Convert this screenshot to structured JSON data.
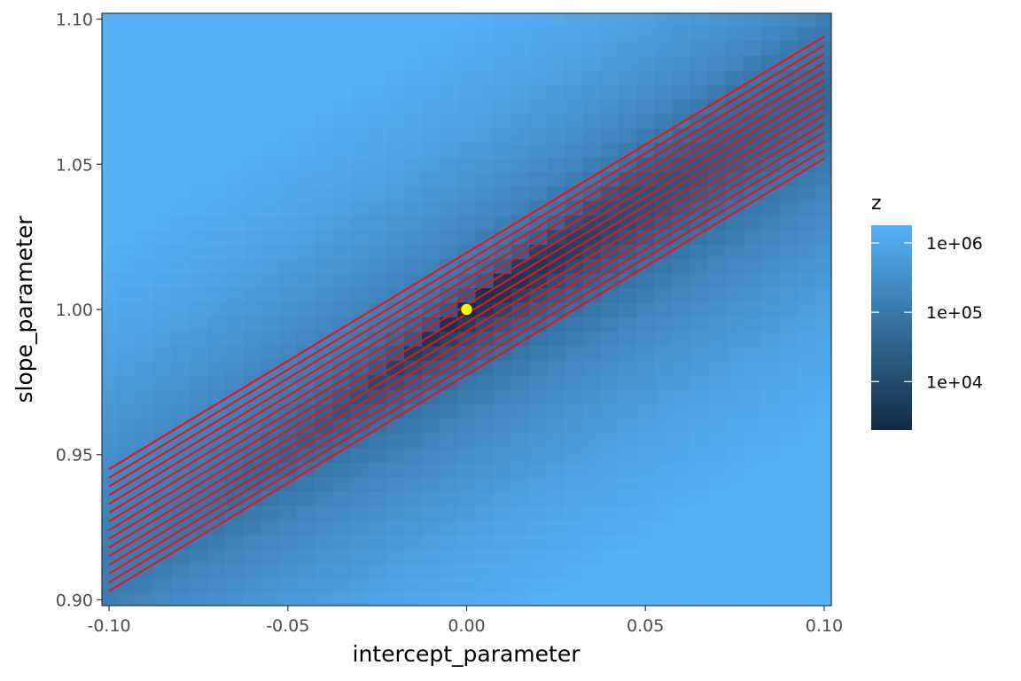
{
  "chart_data": {
    "type": "heatmap",
    "xlabel": "intercept_parameter",
    "ylabel": "slope_parameter",
    "xlim": [
      -0.102,
      0.102
    ],
    "ylim": [
      0.898,
      1.102
    ],
    "x_ticks": [
      -0.1,
      -0.05,
      0.0,
      0.05,
      0.1
    ],
    "x_tick_labels": [
      "-0.10",
      "-0.05",
      "0.00",
      "0.05",
      "0.10"
    ],
    "y_ticks": [
      0.9,
      0.95,
      1.0,
      1.05,
      1.1
    ],
    "y_tick_labels": [
      "0.90",
      "0.95",
      "1.00",
      "1.05",
      "1.10"
    ],
    "heatmap": {
      "x_range": [
        -0.1,
        0.1
      ],
      "y_range": [
        0.9,
        1.1
      ],
      "cells_x": 41,
      "cells_y": 41,
      "minimum_ridge": {
        "slope_at_intercept_0": 1.0,
        "dslope_dintercept": 0.745
      },
      "fill_scale": "log10",
      "color_low": "#132b43",
      "color_high": "#56b1f7"
    },
    "legend": {
      "title": "z",
      "position": "right",
      "breaks": [
        10000,
        100000,
        1000000
      ],
      "labels": [
        "1e+04",
        "1e+05",
        "1e+06"
      ],
      "range": [
        2000,
        1800000
      ]
    },
    "lines": {
      "color": "#e8141b",
      "slope": 0.745,
      "y_at_intercept_0": [
        0.9775,
        0.9805,
        0.9835,
        0.9865,
        0.9895,
        0.9925,
        0.9955,
        0.9985,
        1.0015,
        1.0045,
        1.0075,
        1.0105,
        1.0135,
        1.0165,
        1.0195
      ]
    },
    "points": [
      {
        "x": 0.0,
        "y": 1.0,
        "color": "#ffff00"
      }
    ]
  }
}
